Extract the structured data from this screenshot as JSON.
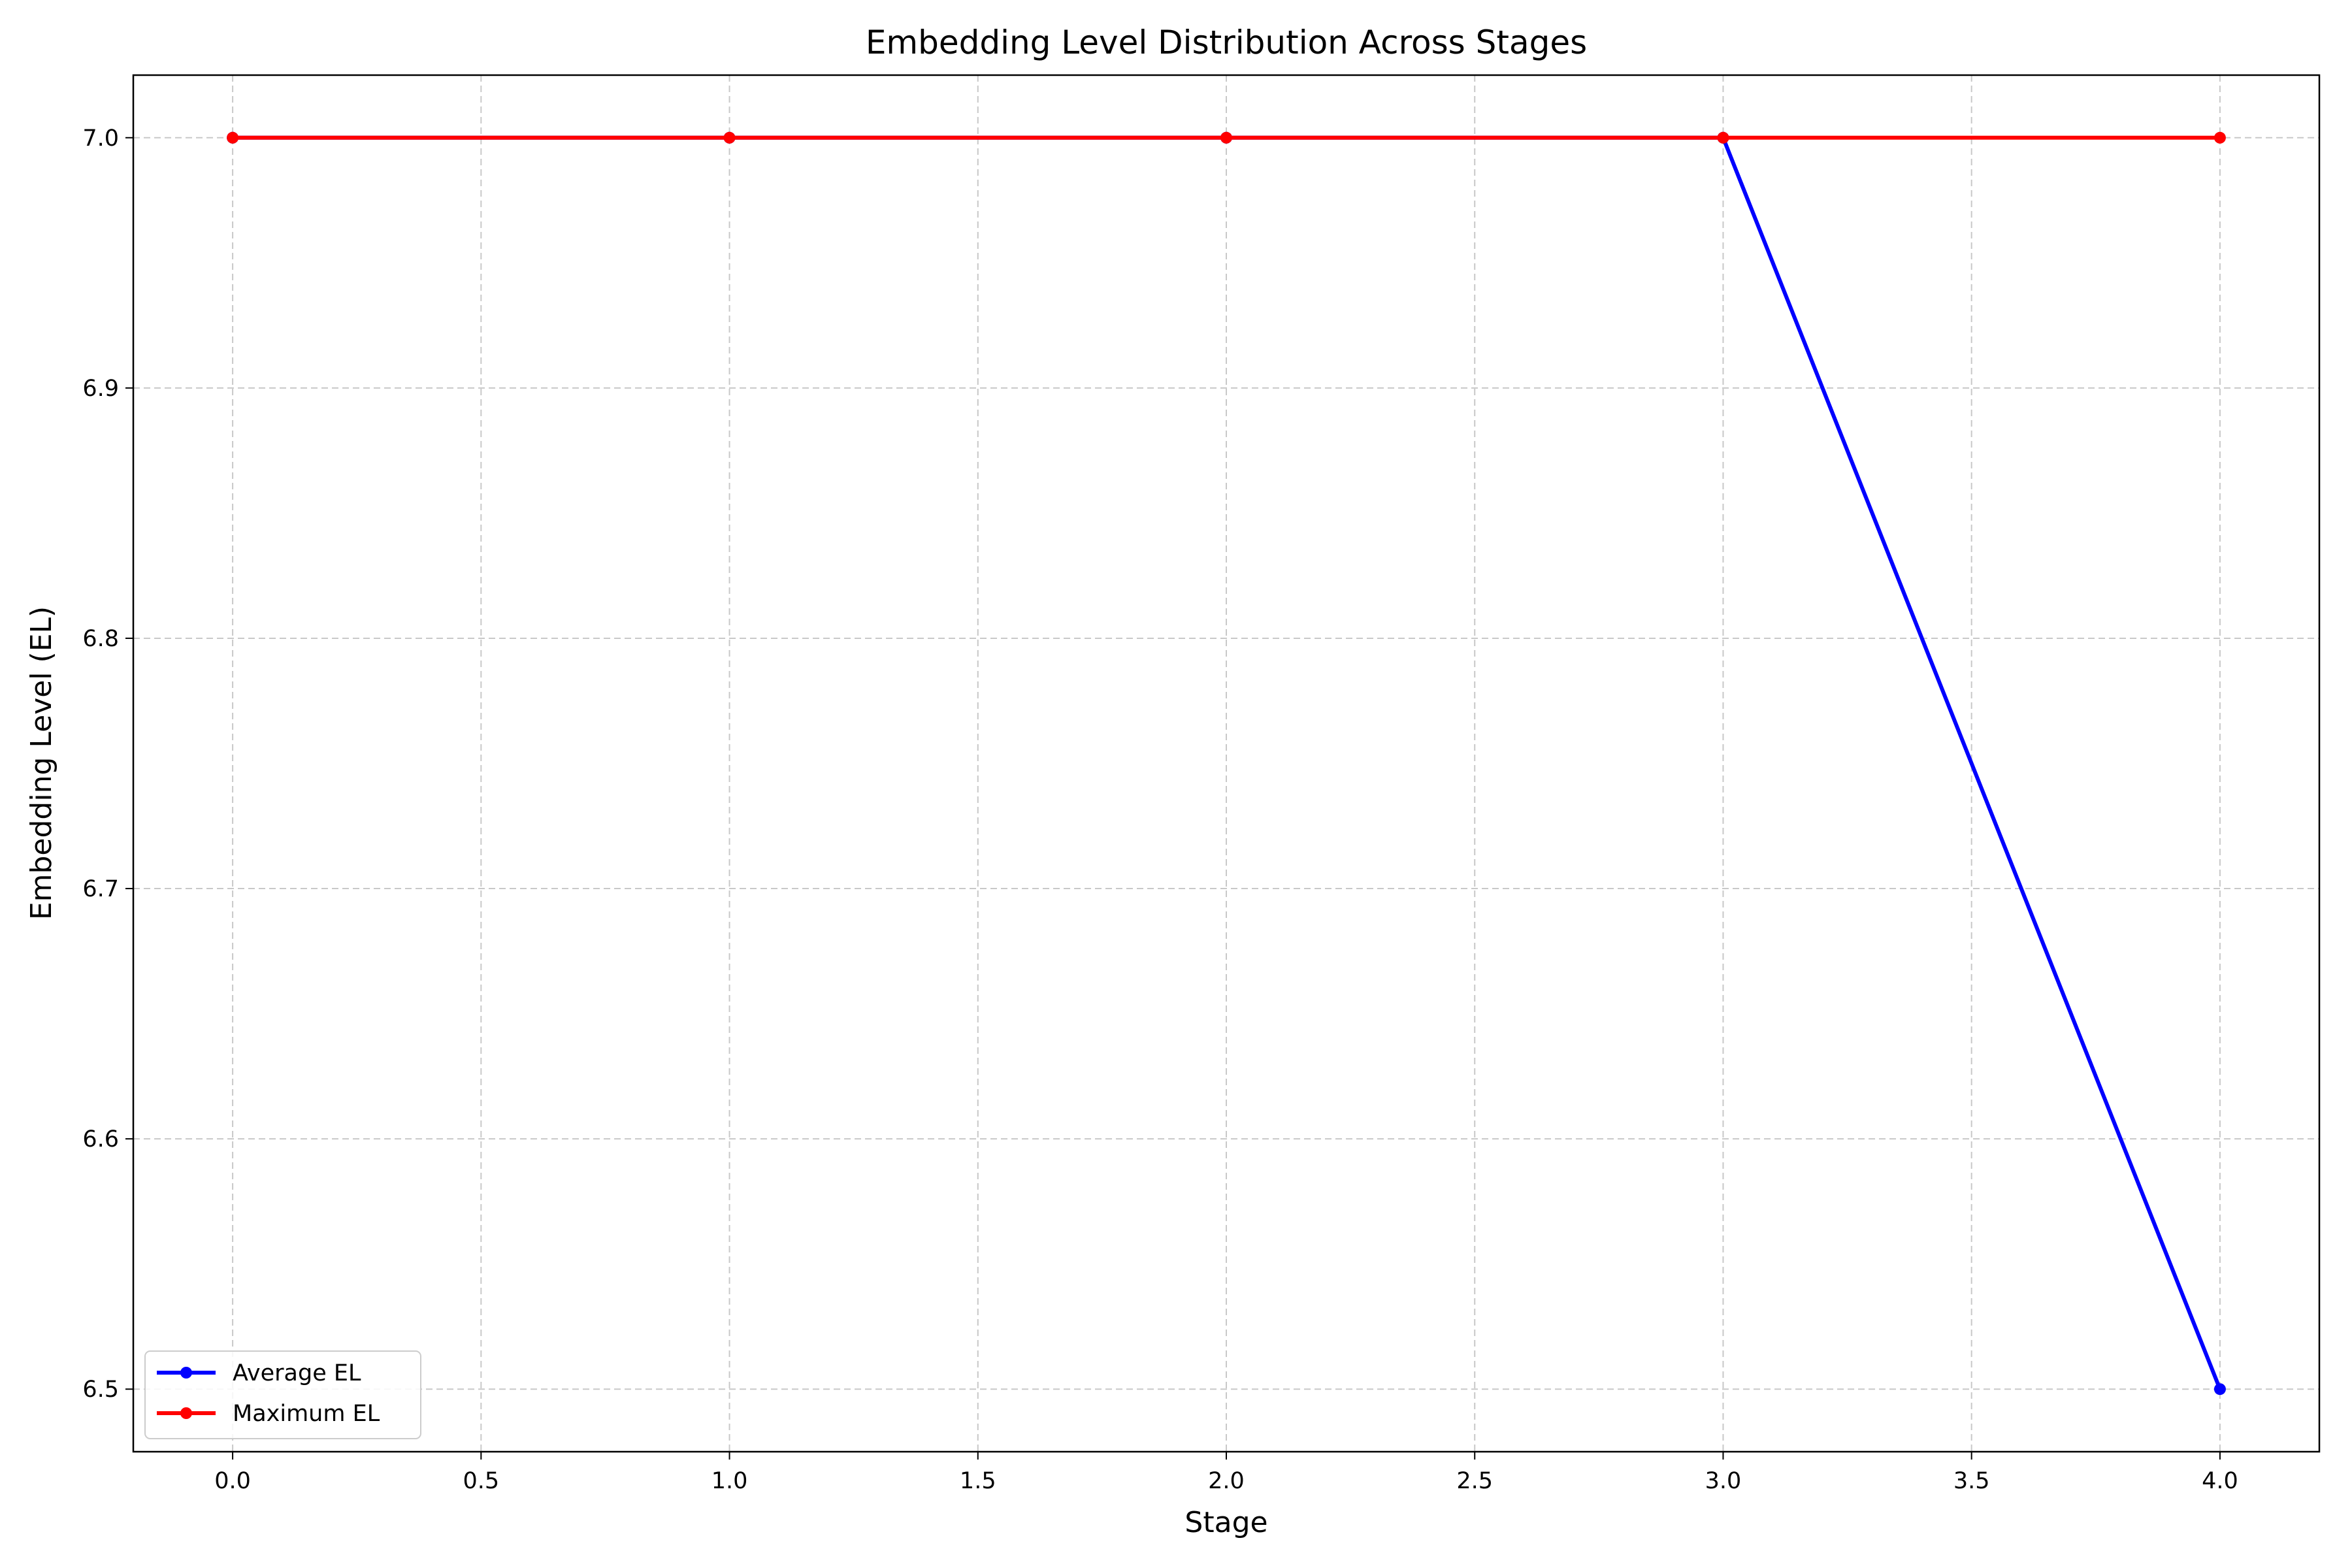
{
  "chart_data": {
    "type": "line",
    "title": "Embedding Level Distribution Across Stages",
    "xlabel": "Stage",
    "ylabel": "Embedding Level (EL)",
    "xlim": [
      -0.2,
      4.2
    ],
    "ylim": [
      6.475,
      7.025
    ],
    "xticks": [
      0.0,
      0.5,
      1.0,
      1.5,
      2.0,
      2.5,
      3.0,
      3.5,
      4.0
    ],
    "xtick_labels": [
      "0.0",
      "0.5",
      "1.0",
      "1.5",
      "2.0",
      "2.5",
      "3.0",
      "3.5",
      "4.0"
    ],
    "yticks": [
      6.5,
      6.6,
      6.7,
      6.8,
      6.9,
      7.0
    ],
    "ytick_labels": [
      "6.5",
      "6.6",
      "6.7",
      "6.8",
      "6.9",
      "7.0"
    ],
    "grid": true,
    "legend_position": "lower-left",
    "x": [
      0,
      1,
      2,
      3,
      4
    ],
    "series": [
      {
        "name": "Average EL",
        "color": "#0000ff",
        "values": [
          7.0,
          7.0,
          7.0,
          7.0,
          6.5
        ]
      },
      {
        "name": "Maximum EL",
        "color": "#ff0000",
        "values": [
          7.0,
          7.0,
          7.0,
          7.0,
          7.0
        ]
      }
    ]
  }
}
